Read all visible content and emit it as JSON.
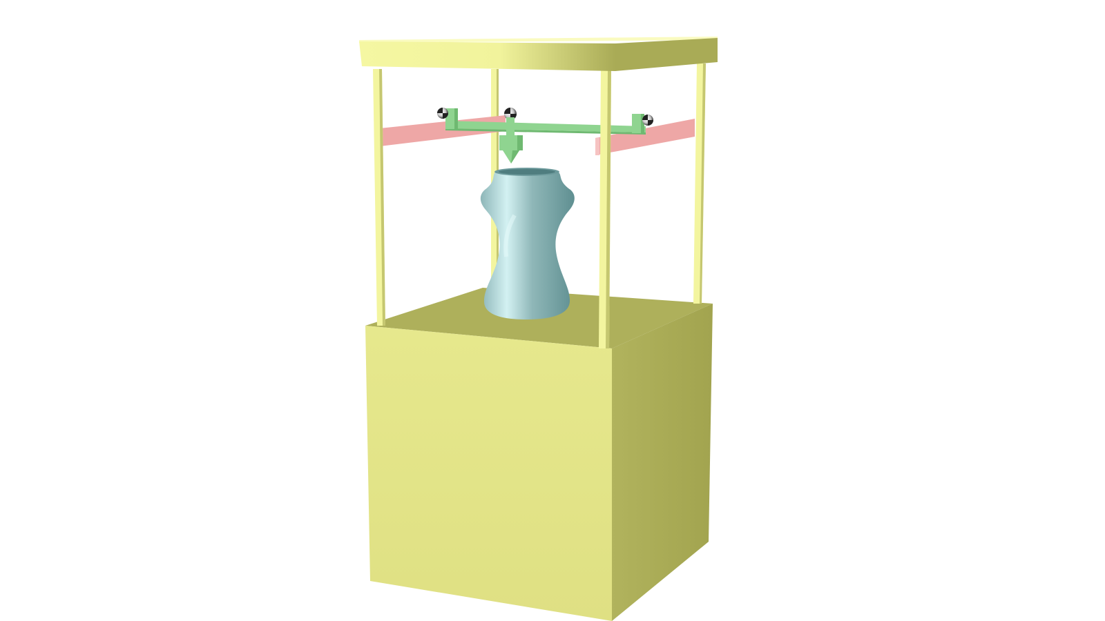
{
  "scene": {
    "subject": "3d-printer-render",
    "colors": {
      "background": "#ffffff",
      "frame_light": "#f5f7a2",
      "frame_mid": "#e6e88c",
      "frame_dark": "#a8aa55",
      "base_front": "#e3e58a",
      "base_side": "#a9ab56",
      "rail": "#eea7a6",
      "gantry": "#8fd490",
      "gantry_dark": "#6fb971",
      "vase_light": "#cfeef0",
      "vase_mid": "#8fb5b7",
      "vase_dark": "#5e8e90",
      "bearing_dark": "#222222",
      "bearing_light": "#e0e0e0"
    }
  }
}
